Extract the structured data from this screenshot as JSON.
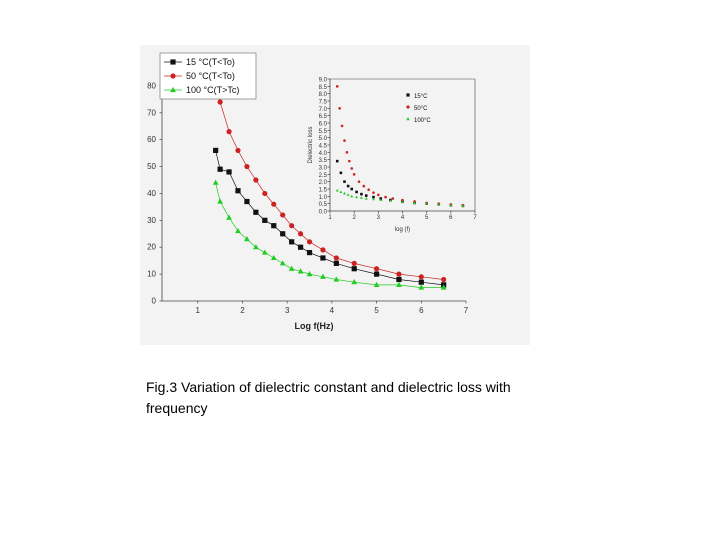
{
  "caption": "Fig.3 Variation of dielectric constant and dielectric loss with frequency",
  "chart_data": [
    {
      "type": "line",
      "title": "",
      "xlabel": "Log f(Hz)",
      "ylabel": "",
      "xlim": [
        0.2,
        7
      ],
      "ylim": [
        0,
        90
      ],
      "xticks": [
        "1",
        "2",
        "3",
        "4",
        "5",
        "6",
        "7"
      ],
      "yticks": [
        "0",
        "10",
        "20",
        "30",
        "40",
        "50",
        "60",
        "70",
        "80"
      ],
      "legend": "top-left",
      "series": [
        {
          "name": "15 °C(T<To)",
          "color": "#111111",
          "marker": "square",
          "x": [
            1.4,
            1.5,
            1.7,
            1.9,
            2.1,
            2.3,
            2.5,
            2.7,
            2.9,
            3.1,
            3.3,
            3.5,
            3.8,
            4.1,
            4.5,
            5.0,
            5.5,
            6.0,
            6.5
          ],
          "y": [
            56,
            49,
            48,
            41,
            37,
            33,
            30,
            28,
            25,
            22,
            20,
            18,
            16,
            14,
            12,
            10,
            8,
            7,
            6
          ]
        },
        {
          "name": "50 °C(T<To)",
          "color": "#cc2222",
          "marker": "circle",
          "x": [
            1.4,
            1.5,
            1.7,
            1.9,
            2.1,
            2.3,
            2.5,
            2.7,
            2.9,
            3.1,
            3.3,
            3.5,
            3.8,
            4.1,
            4.5,
            5.0,
            5.5,
            6.0,
            6.5
          ],
          "y": [
            80,
            74,
            63,
            56,
            50,
            45,
            40,
            36,
            32,
            28,
            25,
            22,
            19,
            16,
            14,
            12,
            10,
            9,
            8
          ]
        },
        {
          "name": "100 °C(T>Tc)",
          "color": "#22cc22",
          "marker": "triangle",
          "x": [
            1.4,
            1.5,
            1.7,
            1.9,
            2.1,
            2.3,
            2.5,
            2.7,
            2.9,
            3.1,
            3.3,
            3.5,
            3.8,
            4.1,
            4.5,
            5.0,
            5.5,
            6.0,
            6.5
          ],
          "y": [
            44,
            37,
            31,
            26,
            23,
            20,
            18,
            16,
            14,
            12,
            11,
            10,
            9,
            8,
            7,
            6,
            6,
            5,
            5
          ]
        }
      ]
    },
    {
      "type": "scatter",
      "title": "",
      "xlabel": "log (f)",
      "ylabel": "Dielectric loss",
      "xlim": [
        1,
        7
      ],
      "ylim": [
        0,
        9
      ],
      "xticks": [
        "1",
        "2",
        "3",
        "4",
        "5",
        "6",
        "7"
      ],
      "yticks": [
        "0.0",
        "0.5",
        "1.0",
        "1.5",
        "2.0",
        "2.5",
        "3.0",
        "3.5",
        "4.0",
        "4.5",
        "5.0",
        "5.5",
        "6.0",
        "6.5",
        "7.0",
        "7.5",
        "8.0",
        "8.5",
        "9.0"
      ],
      "legend": "top-right",
      "series": [
        {
          "name": "15°C",
          "color": "#111111",
          "marker": "square",
          "x": [
            1.3,
            1.45,
            1.6,
            1.75,
            1.9,
            2.1,
            2.3,
            2.5,
            2.8,
            3.1,
            3.5,
            4.0,
            4.5,
            5.0,
            5.5,
            6.0,
            6.5
          ],
          "y": [
            3.4,
            2.6,
            2.0,
            1.7,
            1.5,
            1.3,
            1.15,
            1.05,
            0.95,
            0.85,
            0.75,
            0.65,
            0.55,
            0.5,
            0.45,
            0.4,
            0.35
          ]
        },
        {
          "name": "50°C",
          "color": "#cc2222",
          "marker": "circle",
          "x": [
            1.3,
            1.4,
            1.5,
            1.6,
            1.7,
            1.8,
            1.9,
            2.0,
            2.2,
            2.4,
            2.6,
            2.8,
            3.0,
            3.3,
            3.6,
            4.0,
            4.5,
            5.0,
            5.5,
            6.0,
            6.5
          ],
          "y": [
            8.5,
            7.0,
            5.8,
            4.8,
            4.0,
            3.4,
            2.9,
            2.5,
            2.0,
            1.7,
            1.45,
            1.25,
            1.1,
            0.95,
            0.85,
            0.75,
            0.65,
            0.55,
            0.5,
            0.45,
            0.4
          ]
        },
        {
          "name": "100°C",
          "color": "#22cc22",
          "marker": "triangle",
          "x": [
            1.3,
            1.45,
            1.6,
            1.75,
            1.9,
            2.1,
            2.3,
            2.5,
            2.8,
            3.1,
            3.5,
            4.0,
            4.5,
            5.0,
            5.5,
            6.0,
            6.5
          ],
          "y": [
            1.4,
            1.3,
            1.2,
            1.1,
            1.0,
            0.95,
            0.9,
            0.85,
            0.8,
            0.75,
            0.7,
            0.6,
            0.55,
            0.5,
            0.45,
            0.4,
            0.35
          ]
        }
      ]
    }
  ]
}
